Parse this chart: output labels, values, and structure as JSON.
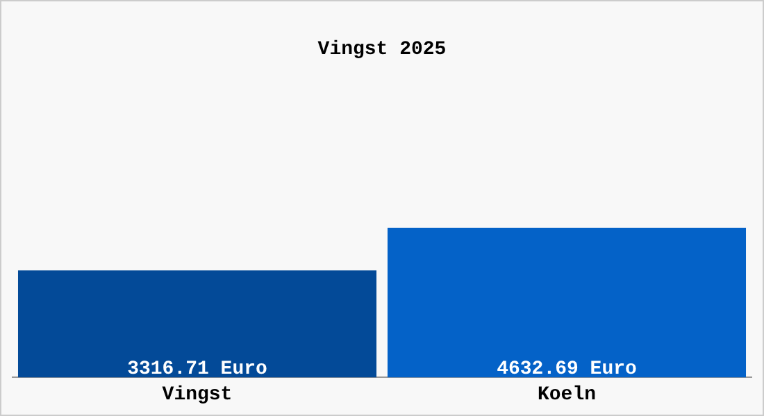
{
  "chart_data": {
    "type": "bar",
    "title": "Vingst 2025",
    "categories": [
      "Vingst",
      "Koeln"
    ],
    "values": [
      3316.71,
      4632.69
    ],
    "colors": [
      "#034a98",
      "#0462c8"
    ],
    "value_labels": [
      "3316.71 Euro",
      "4632.69 Euro"
    ],
    "grid": false,
    "legend": false
  }
}
